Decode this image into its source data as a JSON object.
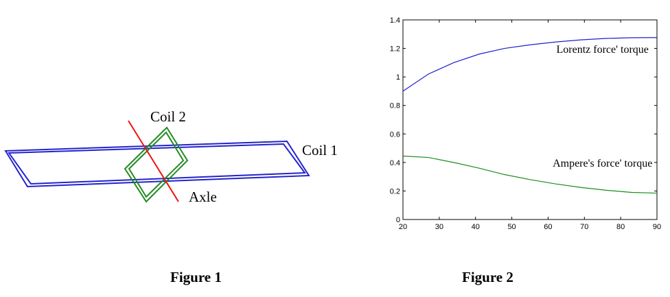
{
  "figure1": {
    "caption": "Figure 1",
    "labels": {
      "coil1": "Coil 1",
      "coil2": "Coil 2",
      "axle": "Axle"
    },
    "colors": {
      "coil1": "#2222cc",
      "coil2": "#228b22",
      "axle": "#ee1111"
    }
  },
  "figure2": {
    "caption": "Figure 2"
  },
  "chart_data": {
    "type": "line",
    "title": "",
    "xlabel": "",
    "ylabel": "",
    "xlim": [
      20,
      90
    ],
    "ylim": [
      0,
      1.4
    ],
    "xticks": [
      20,
      30,
      40,
      50,
      60,
      70,
      80,
      90
    ],
    "yticks": [
      0,
      0.2,
      0.4,
      0.6,
      0.8,
      1,
      1.2,
      1.4
    ],
    "ytick_labels": [
      "0",
      "0.2",
      "0.4",
      "0.6",
      "0.8",
      "1",
      "1.2",
      "1.4"
    ],
    "grid": false,
    "series": [
      {
        "name": "Lorentz force' torque",
        "color": "#1f1fcc",
        "x": [
          20,
          27,
          34,
          41,
          48,
          55,
          62,
          69,
          76,
          83,
          90
        ],
        "y": [
          0.9,
          1.02,
          1.1,
          1.16,
          1.2,
          1.225,
          1.245,
          1.26,
          1.27,
          1.275,
          1.276
        ]
      },
      {
        "name": "Ampere's force' torque",
        "color": "#1a8c1a",
        "x": [
          20,
          27,
          34,
          41,
          48,
          55,
          62,
          69,
          76,
          83,
          90
        ],
        "y": [
          0.445,
          0.435,
          0.4,
          0.36,
          0.315,
          0.28,
          0.25,
          0.225,
          0.205,
          0.19,
          0.185
        ]
      }
    ],
    "annotations": [
      {
        "text": "Lorentz force' torque",
        "x": 75,
        "y": 1.17
      },
      {
        "text": "Ampere's force' torque",
        "x": 75,
        "y": 0.37
      }
    ]
  }
}
